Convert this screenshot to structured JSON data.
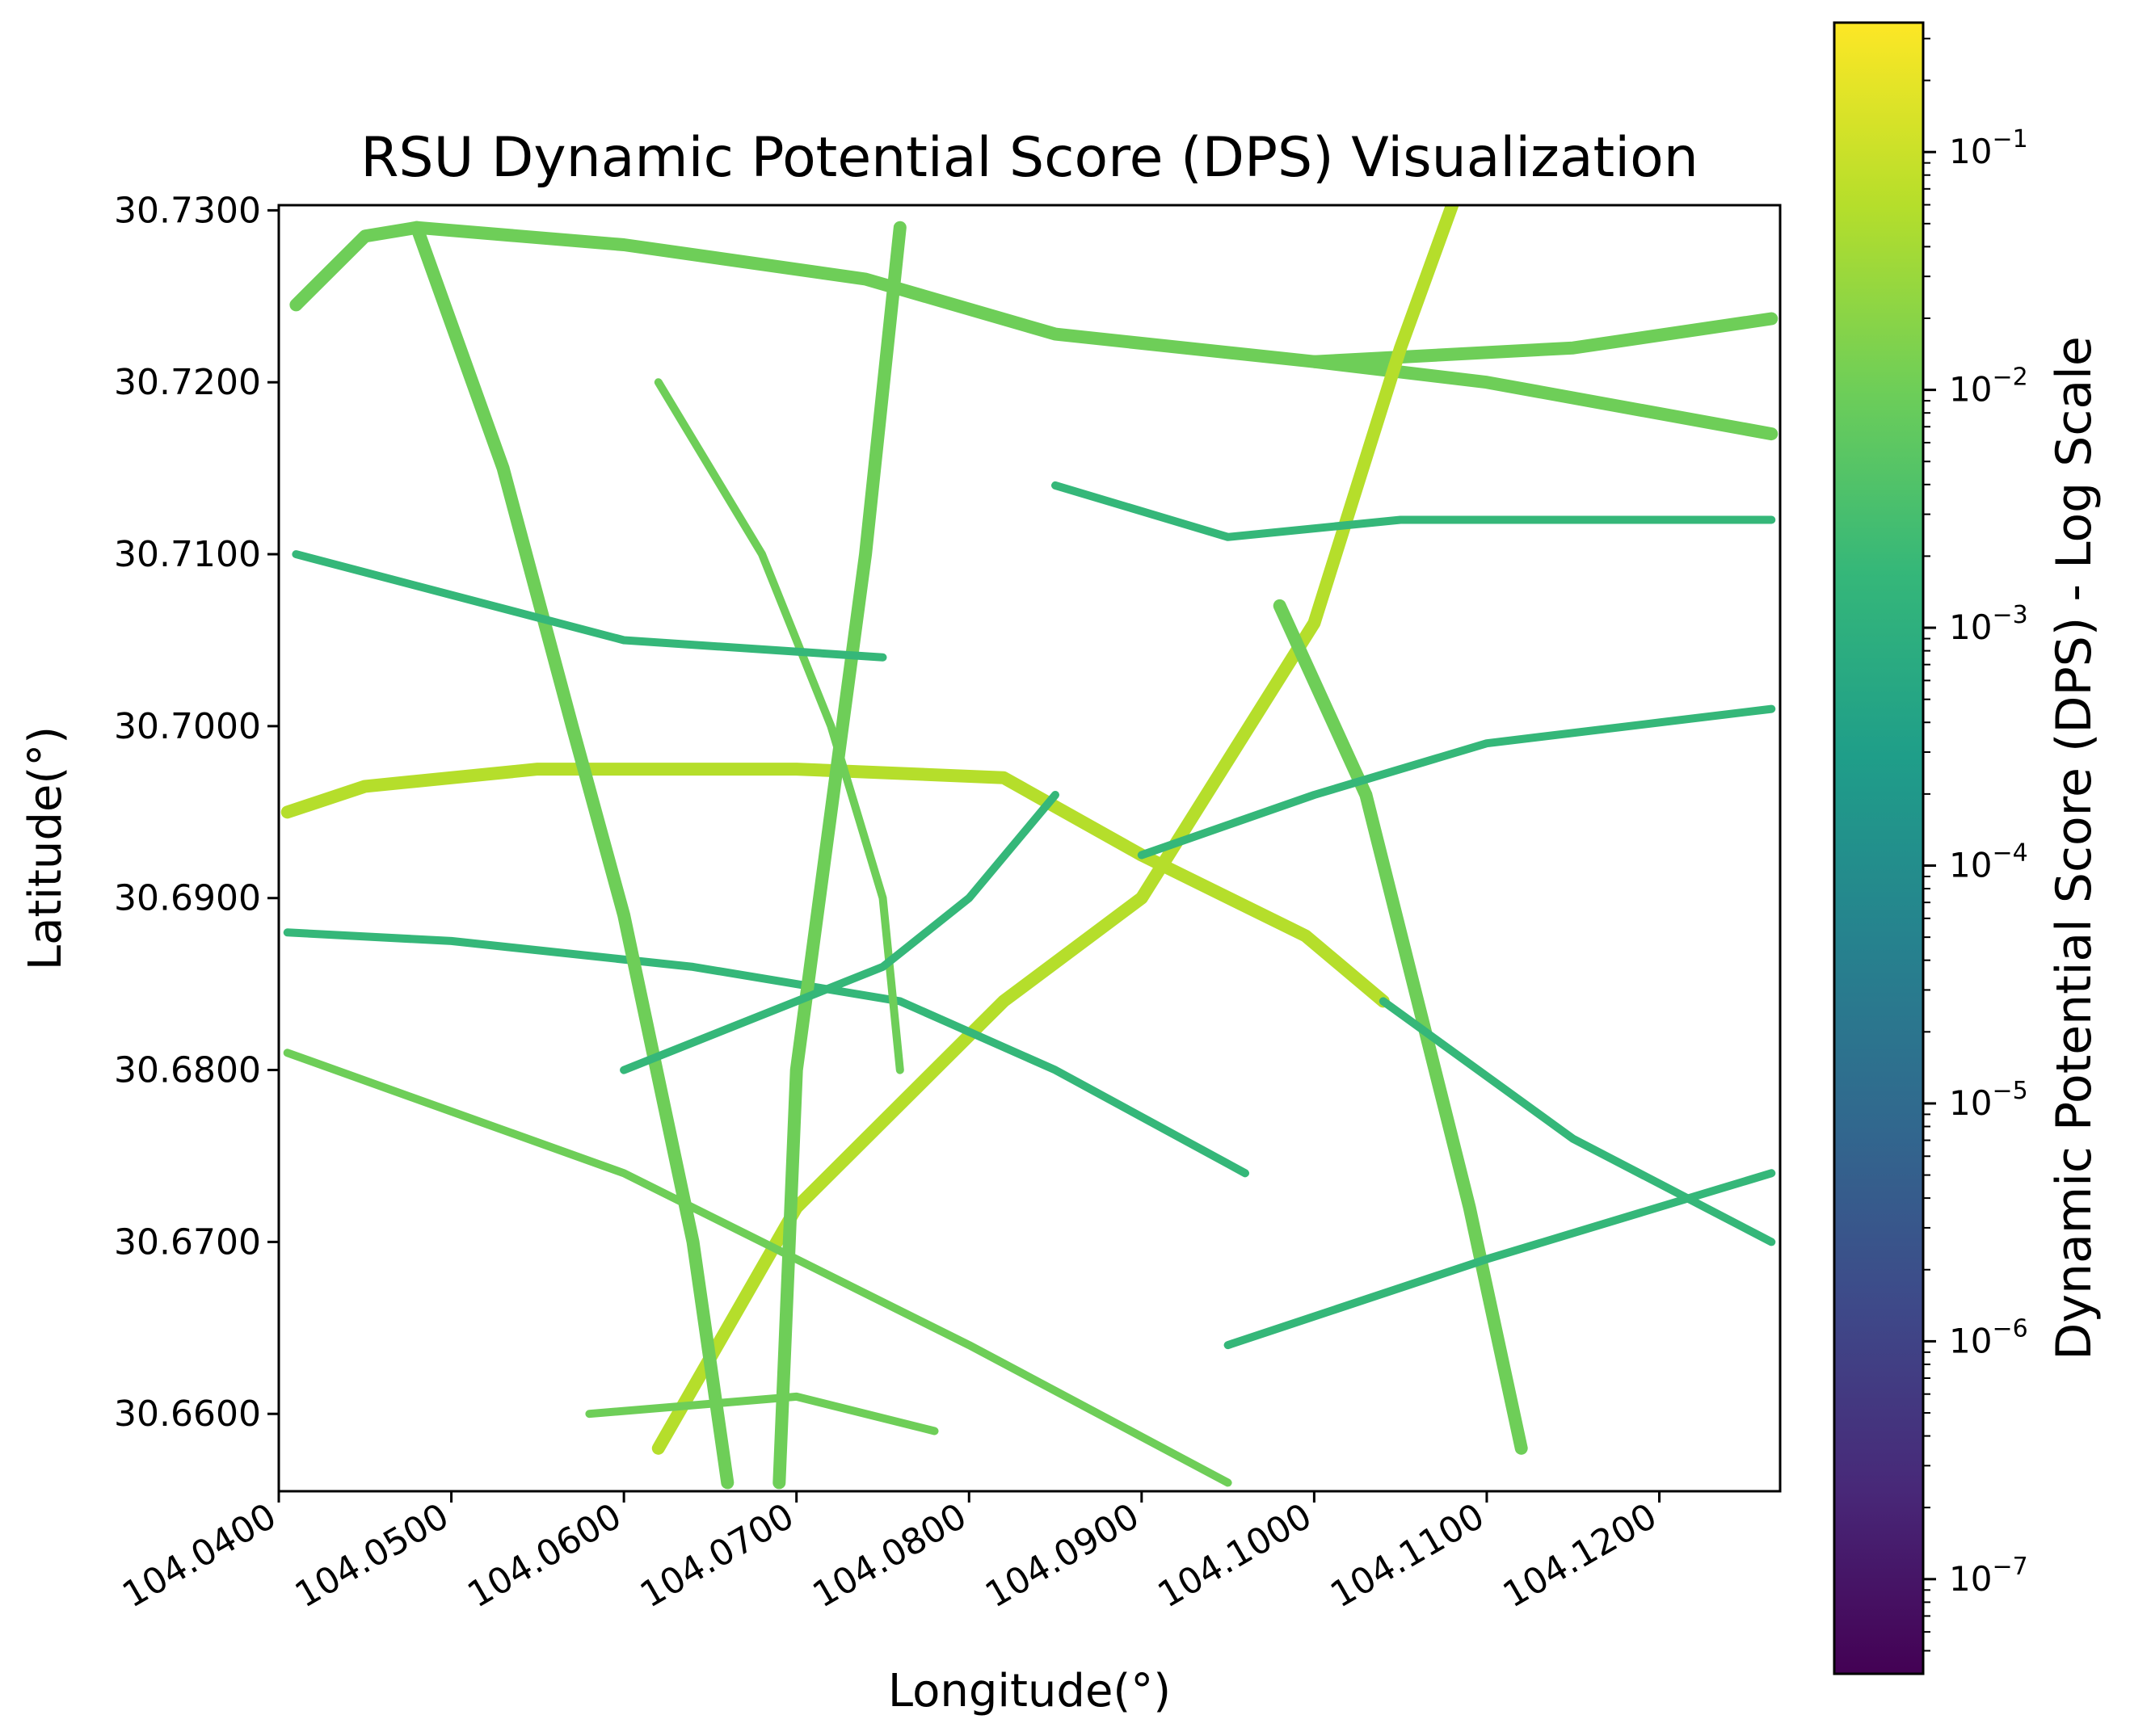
{
  "chart_data": {
    "type": "heatmap",
    "title": "RSU Dynamic Potential Score (DPS) Visualization",
    "xlabel": "Longitude(°)",
    "ylabel": "Latitude(°)",
    "xlim": [
      104.04,
      104.127
    ],
    "ylim": [
      30.6555,
      30.7303
    ],
    "x_ticks": [
      "104.0400",
      "104.0500",
      "104.0600",
      "104.0700",
      "104.0800",
      "104.0900",
      "104.1000",
      "104.1100",
      "104.1200"
    ],
    "y_ticks": [
      "30.6600",
      "30.6700",
      "30.6800",
      "30.6900",
      "30.7000",
      "30.7100",
      "30.7200",
      "30.7300"
    ],
    "grid": false,
    "colormap": "viridis",
    "colors": [
      "#440154",
      "#482878",
      "#3e4989",
      "#31688e",
      "#26828e",
      "#1f9e89",
      "#35b779",
      "#6ece58",
      "#b5de2b",
      "#fde725"
    ],
    "colorbar": {
      "label": "Dynamic Potential Score (DPS) - Log Scale",
      "scale": "log",
      "range": [
        4e-08,
        0.35
      ],
      "ticks": [
        {
          "value": 1e-07,
          "base": "10",
          "exp": "−7"
        },
        {
          "value": 1e-06,
          "base": "10",
          "exp": "−6"
        },
        {
          "value": 1e-05,
          "base": "10",
          "exp": "−5"
        },
        {
          "value": 0.0001,
          "base": "10",
          "exp": "−4"
        },
        {
          "value": 0.001,
          "base": "10",
          "exp": "−3"
        },
        {
          "value": 0.01,
          "base": "10",
          "exp": "−2"
        },
        {
          "value": 0.1,
          "base": "10",
          "exp": "−1"
        }
      ]
    },
    "roads": [
      {
        "dps": 0.02,
        "pts": [
          [
            104.041,
            30.7245
          ],
          [
            104.045,
            30.7285
          ],
          [
            104.048,
            30.729
          ],
          [
            104.06,
            30.728
          ],
          [
            104.074,
            30.726
          ],
          [
            104.085,
            30.7228
          ],
          [
            104.1,
            30.7212
          ],
          [
            104.11,
            30.72
          ],
          [
            104.1265,
            30.717
          ]
        ]
      },
      {
        "dps": 0.01,
        "pts": [
          [
            104.1,
            30.7212
          ],
          [
            104.115,
            30.722
          ],
          [
            104.1265,
            30.7237
          ]
        ]
      },
      {
        "dps": 0.05,
        "pts": [
          [
            104.0405,
            30.695
          ],
          [
            104.045,
            30.6965
          ],
          [
            104.055,
            30.6975
          ],
          [
            104.07,
            30.6975
          ],
          [
            104.082,
            30.697
          ],
          [
            104.09,
            30.6925
          ],
          [
            104.0995,
            30.6878
          ],
          [
            104.104,
            30.684
          ]
        ]
      },
      {
        "dps": 0.06,
        "pts": [
          [
            104.062,
            30.658
          ],
          [
            104.07,
            30.672
          ],
          [
            104.082,
            30.684
          ],
          [
            104.09,
            30.69
          ],
          [
            104.1,
            30.706
          ],
          [
            104.105,
            30.722
          ],
          [
            104.108,
            30.7303
          ]
        ]
      },
      {
        "dps": 0.01,
        "pts": [
          [
            104.098,
            30.707
          ],
          [
            104.103,
            30.696
          ],
          [
            104.106,
            30.684
          ],
          [
            104.109,
            30.672
          ],
          [
            104.112,
            30.658
          ]
        ]
      },
      {
        "dps": 0.005,
        "pts": [
          [
            104.0405,
            30.681
          ],
          [
            104.06,
            30.674
          ],
          [
            104.08,
            30.664
          ],
          [
            104.095,
            30.656
          ]
        ]
      },
      {
        "dps": 0.003,
        "pts": [
          [
            104.0405,
            30.688
          ],
          [
            104.05,
            30.6875
          ],
          [
            104.064,
            30.686
          ],
          [
            104.076,
            30.684
          ],
          [
            104.085,
            30.68
          ],
          [
            104.096,
            30.674
          ]
        ]
      },
      {
        "dps": 0.01,
        "pts": [
          [
            104.048,
            30.729
          ],
          [
            104.053,
            30.715
          ],
          [
            104.057,
            30.7
          ],
          [
            104.06,
            30.689
          ],
          [
            104.064,
            30.67
          ],
          [
            104.066,
            30.656
          ]
        ]
      },
      {
        "dps": 0.02,
        "pts": [
          [
            104.076,
            30.729
          ],
          [
            104.074,
            30.71
          ],
          [
            104.072,
            30.695
          ],
          [
            104.07,
            30.68
          ],
          [
            104.069,
            30.656
          ]
        ]
      },
      {
        "dps": 0.008,
        "pts": [
          [
            104.062,
            30.72
          ],
          [
            104.068,
            30.71
          ],
          [
            104.072,
            30.7
          ],
          [
            104.075,
            30.69
          ],
          [
            104.076,
            30.68
          ]
        ]
      },
      {
        "dps": 0.004,
        "pts": [
          [
            104.041,
            30.71
          ],
          [
            104.06,
            30.705
          ],
          [
            104.075,
            30.704
          ]
        ]
      },
      {
        "dps": 0.004,
        "pts": [
          [
            104.104,
            30.684
          ],
          [
            104.115,
            30.676
          ],
          [
            104.1265,
            30.67
          ]
        ]
      },
      {
        "dps": 0.003,
        "pts": [
          [
            104.09,
            30.6925
          ],
          [
            104.1,
            30.696
          ],
          [
            104.11,
            30.699
          ],
          [
            104.1265,
            30.701
          ]
        ]
      },
      {
        "dps": 0.003,
        "pts": [
          [
            104.095,
            30.664
          ],
          [
            104.11,
            30.669
          ],
          [
            104.1265,
            30.674
          ]
        ]
      },
      {
        "dps": 0.006,
        "pts": [
          [
            104.058,
            30.66
          ],
          [
            104.07,
            30.661
          ],
          [
            104.078,
            30.659
          ]
        ]
      },
      {
        "dps": 0.002,
        "pts": [
          [
            104.085,
            30.714
          ],
          [
            104.095,
            30.711
          ],
          [
            104.105,
            30.712
          ],
          [
            104.1265,
            30.712
          ]
        ]
      },
      {
        "dps": 0.002,
        "pts": [
          [
            104.06,
            30.68
          ],
          [
            104.075,
            30.686
          ],
          [
            104.08,
            30.69
          ],
          [
            104.085,
            30.696
          ]
        ]
      }
    ]
  }
}
